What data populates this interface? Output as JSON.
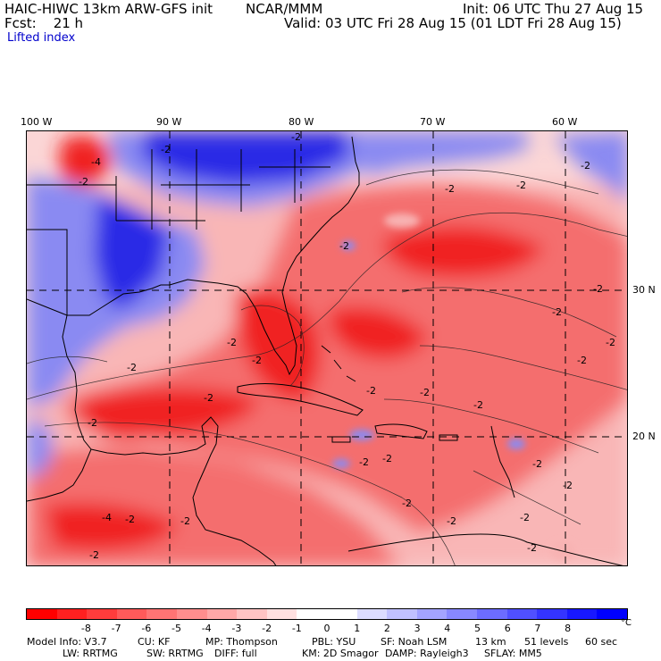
{
  "header": {
    "model": "HAIC-HIWC 13km ARW-GFS init",
    "org": "NCAR/MMM",
    "init": "Init: 06 UTC Thu 27 Aug 15",
    "fcst": "Fcst:    21 h",
    "valid": "Valid: 03 UTC Fri 28 Aug 15 (01 LDT Fri 28 Aug 15)",
    "field": "Lifted index"
  },
  "map": {
    "lon_labels": [
      "100 W",
      "90 W",
      "80 W",
      "70 W",
      "60 W"
    ],
    "lat_labels": [
      "30 N",
      "20 N"
    ],
    "contour_labels": [
      "-4",
      "-2",
      "-2",
      "-2",
      "-2",
      "-2",
      "-2",
      "-2",
      "-2",
      "-2",
      "-2",
      "-2",
      "-2",
      "-2",
      "-2",
      "-2",
      "-2",
      "-2",
      "-2",
      "-2",
      "-2",
      "-2",
      "-2",
      "-2",
      "-2",
      "-2",
      "-2",
      "-2",
      "-2",
      "-2",
      "-2",
      "-4"
    ],
    "colors": {
      "strong_negative": "#f01818",
      "negative": "#f46a6a",
      "weak_negative": "#f8b4b4",
      "positive": "#8c8cf4",
      "strong_positive": "#2828e6",
      "coast": "#000000",
      "grid": "#000000"
    }
  },
  "colorbar": {
    "ticks": [
      "-8",
      "-7",
      "-6",
      "-5",
      "-4",
      "-3",
      "-2",
      "-1",
      "0",
      "1",
      "2",
      "3",
      "4",
      "5",
      "6",
      "7",
      "8"
    ],
    "unit": "°C",
    "colors": [
      "#ff0000",
      "#ff2020",
      "#ff3c3c",
      "#ff5a5a",
      "#ff7474",
      "#ff8e8e",
      "#ffa8a8",
      "#ffc4c4",
      "#ffe0e0",
      "#ffffff",
      "#ffffff",
      "#dcdcff",
      "#c0c0ff",
      "#a4a4ff",
      "#8888ff",
      "#6c6cff",
      "#5050ff",
      "#3434ff",
      "#1818ff",
      "#0000ff"
    ]
  },
  "info": {
    "line1": [
      "Model Info: V3.7",
      "CU: KF",
      "MP: Thompson",
      "PBL: YSU",
      "SF: Noah LSM",
      "13 km",
      "51 levels",
      "60 sec"
    ],
    "line2": [
      "LW: RRTMG",
      "SW: RRTMG",
      "DIFF: full",
      "KM: 2D Smagor",
      "DAMP: Rayleigh3",
      "SFLAY: MM5"
    ]
  }
}
